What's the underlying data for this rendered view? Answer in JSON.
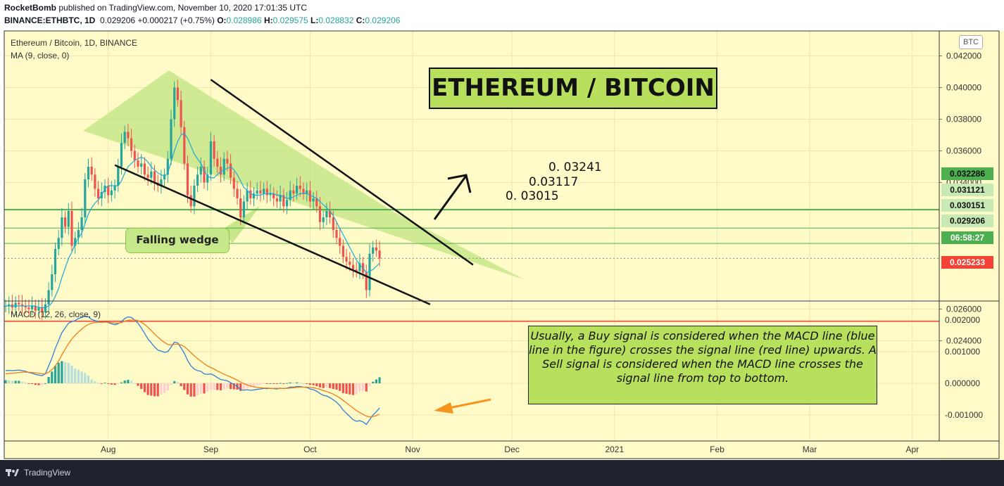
{
  "header": {
    "publisher": "RocketBomb",
    "publish_text": " published on TradingView.com, November 10, 2020 17:01:35 UTC",
    "symbol": "BINANCE:ETHBTC, 1D",
    "last": "0.029206",
    "change": "+0.000217 (+0.75%)",
    "o_label": "O:",
    "o": "0.028986",
    "h_label": "H:",
    "h": "0.029575",
    "l_label": "L:",
    "l": "0.028832",
    "c_label": "C:",
    "c": "0.029206"
  },
  "pane_labels": {
    "main": "Ethereum / Bitcoin, 1D, BINANCE",
    "ma": "MA (9, close, 0)",
    "macd": "MACD (12, 26, close, 9)",
    "currency": "BTC"
  },
  "annotations": {
    "title": "ETHEREUM / BITCOIN",
    "pattern": "Falling wedge",
    "level_1": "0. 03241",
    "level_2": "0.03117",
    "level_3": "0. 03015",
    "note": "Usually, a Buy signal is considered when the MACD line (blue line in the figure) crosses the signal line (red line) upwards. A Sell signal is considered when the MACD line crosses the signal line from top to bottom."
  },
  "price_tags": {
    "resistance_top": "0.032286",
    "resistance_mid": "0.031121",
    "resistance_low": "0.030151",
    "current": "0.029206",
    "countdown": "06:58:27",
    "support": "0.025233"
  },
  "footer": {
    "brand": "TradingView"
  },
  "colors": {
    "background": "#fffbc8",
    "up": "#26a69a",
    "down": "#ef5350",
    "ma": "#1ba8d8",
    "macd_line": "#2f7fd8",
    "signal_line": "#f07f1a",
    "wedge_fill": "#c8e68a",
    "resistance": "#4caf50",
    "support": "#f44336",
    "note_bg": "#b8e05c"
  },
  "chart_data": [
    {
      "type": "candlestick",
      "title": "Ethereum / Bitcoin, 1D, BINANCE",
      "x_ticks": [
        "Aug",
        "Sep",
        "Oct",
        "Nov",
        "Dec",
        "2021",
        "Feb",
        "Mar",
        "Apr"
      ],
      "y_ticks": [
        "0.042000",
        "0.040000",
        "0.038000",
        "0.036000",
        "0.034000",
        "0.026000",
        "0.024000"
      ],
      "ylim": [
        0.0228,
        0.0428
      ],
      "price_series": [
        0.0262,
        0.0263,
        0.0261,
        0.0264,
        0.0263,
        0.0262,
        0.0261,
        0.026,
        0.0262,
        0.0259,
        0.0261,
        0.0258,
        0.0263,
        0.0272,
        0.0282,
        0.0298,
        0.0305,
        0.0318,
        0.0312,
        0.0322,
        0.03,
        0.0305,
        0.031,
        0.0318,
        0.0342,
        0.035,
        0.0345,
        0.0336,
        0.033,
        0.0334,
        0.0338,
        0.0332,
        0.0335,
        0.0338,
        0.035,
        0.0365,
        0.0372,
        0.0368,
        0.036,
        0.0354,
        0.035,
        0.0352,
        0.0345,
        0.0343,
        0.0347,
        0.034,
        0.0338,
        0.0342,
        0.0345,
        0.0355,
        0.038,
        0.04,
        0.0392,
        0.0375,
        0.0352,
        0.0332,
        0.0325,
        0.0338,
        0.0345,
        0.035,
        0.034,
        0.0345,
        0.0366,
        0.0355,
        0.035,
        0.0345,
        0.0355,
        0.0352,
        0.0343,
        0.0336,
        0.033,
        0.0318,
        0.0328,
        0.0335,
        0.033,
        0.0333,
        0.0335,
        0.0333,
        0.0336,
        0.0332,
        0.0333,
        0.033,
        0.0328,
        0.0332,
        0.0325,
        0.0329,
        0.0335,
        0.0333,
        0.0338,
        0.0336,
        0.0333,
        0.0335,
        0.0328,
        0.033,
        0.0325,
        0.0315,
        0.0318,
        0.0322,
        0.0318,
        0.031,
        0.0305,
        0.03,
        0.0293,
        0.029,
        0.0288,
        0.0285,
        0.0284,
        0.0289,
        0.0283,
        0.0272,
        0.0295,
        0.0299,
        0.0297,
        0.0292
      ],
      "ma9_series": [
        0.0262,
        0.0262,
        0.0262,
        0.0262,
        0.0262,
        0.0262,
        0.0262,
        0.0262,
        0.0262,
        0.0262,
        0.0261,
        0.0261,
        0.0261,
        0.0262,
        0.0264,
        0.0268,
        0.0273,
        0.028,
        0.0286,
        0.0292,
        0.0296,
        0.0301,
        0.0305,
        0.0308,
        0.0314,
        0.032,
        0.0324,
        0.0327,
        0.0329,
        0.0332,
        0.0336,
        0.0338,
        0.0338,
        0.0338,
        0.0338,
        0.0341,
        0.0346,
        0.035,
        0.0352,
        0.0354,
        0.0355,
        0.0356,
        0.0355,
        0.0353,
        0.035,
        0.0348,
        0.0346,
        0.0345,
        0.0344,
        0.0346,
        0.0353,
        0.036,
        0.0366,
        0.037,
        0.0371,
        0.0368,
        0.0363,
        0.0358,
        0.0355,
        0.0352,
        0.0348,
        0.0344,
        0.0343,
        0.0343,
        0.0345,
        0.0347,
        0.0348,
        0.0349,
        0.035,
        0.0348,
        0.0345,
        0.0341,
        0.0337,
        0.0335,
        0.0333,
        0.0332,
        0.0332,
        0.0332,
        0.0333,
        0.0333,
        0.0333,
        0.0333,
        0.0332,
        0.0332,
        0.0331,
        0.033,
        0.033,
        0.0331,
        0.0332,
        0.0333,
        0.0333,
        0.0333,
        0.0332,
        0.0331,
        0.033,
        0.0328,
        0.0326,
        0.0324,
        0.0322,
        0.0319,
        0.0315,
        0.0311,
        0.0307,
        0.0303,
        0.0299,
        0.0295,
        0.0291,
        0.0288,
        0.0286,
        0.0283,
        0.0284,
        0.0285,
        0.0287,
        0.0289
      ],
      "levels": [
        {
          "name": "resistance_top",
          "value": 0.032286
        },
        {
          "name": "resistance_mid",
          "value": 0.031121
        },
        {
          "name": "resistance_low",
          "value": 0.030151
        },
        {
          "name": "support",
          "value": 0.025233
        },
        {
          "name": "current",
          "value": 0.029206
        }
      ],
      "wedge_upper": [
        {
          "date": "2020-09-01",
          "value": 0.0405
        },
        {
          "date": "2020-11-15",
          "value": 0.0288
        }
      ],
      "wedge_lower": [
        {
          "date": "2020-08-03",
          "value": 0.0351
        },
        {
          "date": "2020-11-05",
          "value": 0.0263
        }
      ]
    },
    {
      "type": "macd",
      "title": "MACD (12, 26, close, 9)",
      "y_ticks": [
        "0.002000",
        "0.001000",
        "0.000000",
        "-0.001000"
      ],
      "ylim": [
        -0.00135,
        0.00215
      ],
      "macd_series": [
        0.0004,
        0.00041,
        0.0004,
        0.00041,
        0.00042,
        0.0004,
        0.00038,
        0.00034,
        0.00032,
        0.00028,
        0.00026,
        0.00024,
        0.0003,
        0.00055,
        0.0008,
        0.0011,
        0.00135,
        0.0016,
        0.00175,
        0.0019,
        0.00195,
        0.00198,
        0.00205,
        0.00208,
        0.00212,
        0.0021,
        0.00202,
        0.00198,
        0.00195,
        0.00192,
        0.00195,
        0.00192,
        0.00188,
        0.00185,
        0.00188,
        0.00195,
        0.00205,
        0.0021,
        0.00208,
        0.002,
        0.0019,
        0.00175,
        0.00158,
        0.0014,
        0.00128,
        0.00115,
        0.00105,
        0.00102,
        0.00098,
        0.001,
        0.00115,
        0.0013,
        0.00128,
        0.00112,
        0.00095,
        0.00072,
        0.00055,
        0.00045,
        0.0004,
        0.00038,
        0.0003,
        0.00028,
        0.0003,
        0.00025,
        0.00018,
        0.00012,
        0.0001,
        8e-05,
        2e-05,
        -4e-05,
        -0.0001,
        -0.0002,
        -0.00022,
        -0.0002,
        -0.00022,
        -0.00021,
        -0.00019,
        -0.00018,
        -0.00016,
        -0.00017,
        -0.00016,
        -0.00017,
        -0.00018,
        -0.00015,
        -0.00017,
        -0.00015,
        -0.00012,
        -0.00012,
        -0.0001,
        -0.0001,
        -0.00012,
        -0.00013,
        -0.00018,
        -0.0002,
        -0.00025,
        -0.00032,
        -0.00038,
        -0.0004,
        -0.00045,
        -0.00052,
        -0.0006,
        -0.0007,
        -0.00085,
        -0.00095,
        -0.00105,
        -0.00115,
        -0.0012,
        -0.00118,
        -0.00122,
        -0.0013,
        -0.00115,
        -0.001,
        -0.0009,
        -0.00078
      ],
      "signal_series": [
        0.0003,
        0.00031,
        0.00032,
        0.00033,
        0.00034,
        0.00035,
        0.00035,
        0.00035,
        0.00034,
        0.00033,
        0.00032,
        0.0003,
        0.0003,
        0.00035,
        0.00043,
        0.00055,
        0.0007,
        0.0009,
        0.00108,
        0.00125,
        0.0014,
        0.00152,
        0.00162,
        0.00171,
        0.0018,
        0.00186,
        0.0019,
        0.00192,
        0.00193,
        0.00193,
        0.00193,
        0.00193,
        0.00192,
        0.0019,
        0.0019,
        0.00192,
        0.00196,
        0.00199,
        0.002,
        0.002,
        0.00198,
        0.00193,
        0.00186,
        0.00177,
        0.00167,
        0.00156,
        0.00146,
        0.00137,
        0.00129,
        0.00123,
        0.00121,
        0.00123,
        0.00124,
        0.00121,
        0.00116,
        0.00107,
        0.00097,
        0.00087,
        0.00078,
        0.0007,
        0.00062,
        0.00055,
        0.0005,
        0.00045,
        0.00039,
        0.00034,
        0.00029,
        0.00024,
        0.0002,
        0.00015,
        0.0001,
        4e-05,
        -1e-05,
        -5e-05,
        -8e-05,
        -0.00011,
        -0.00013,
        -0.00014,
        -0.00015,
        -0.00015,
        -0.00016,
        -0.00016,
        -0.00016,
        -0.00016,
        -0.00016,
        -0.00016,
        -0.00015,
        -0.00014,
        -0.00013,
        -0.00012,
        -0.00012,
        -0.00012,
        -0.00013,
        -0.00014,
        -0.00016,
        -0.00019,
        -0.00023,
        -0.00026,
        -0.0003,
        -0.00034,
        -0.0004,
        -0.00046,
        -0.00054,
        -0.00062,
        -0.0007,
        -0.00078,
        -0.00086,
        -0.00092,
        -0.00098,
        -0.00104,
        -0.00106,
        -0.00105,
        -0.00102,
        -0.00097
      ]
    }
  ]
}
